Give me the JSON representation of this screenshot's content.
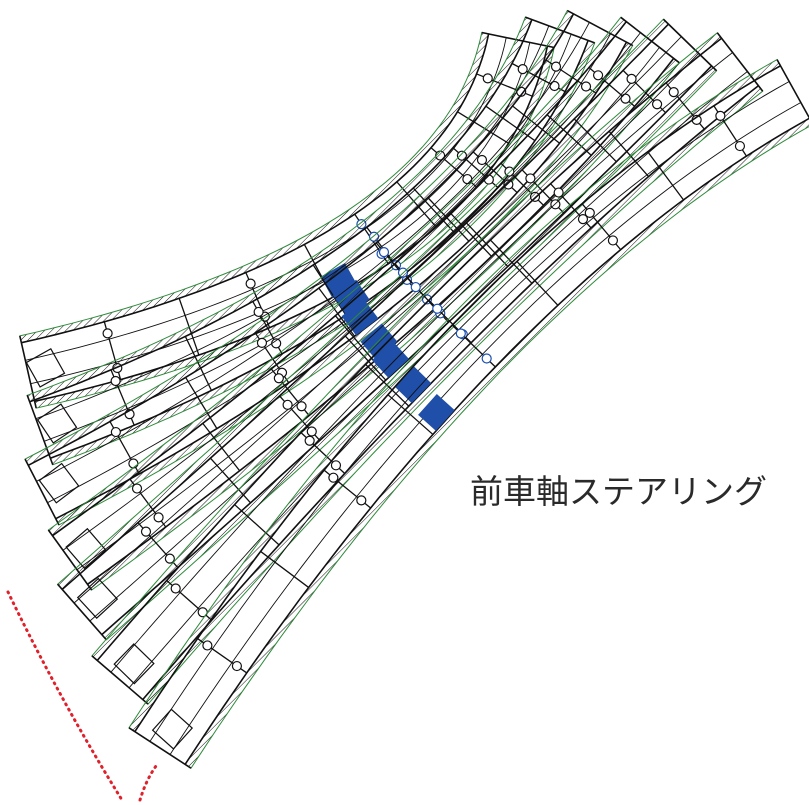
{
  "label": "前車軸ステアリング"
}
